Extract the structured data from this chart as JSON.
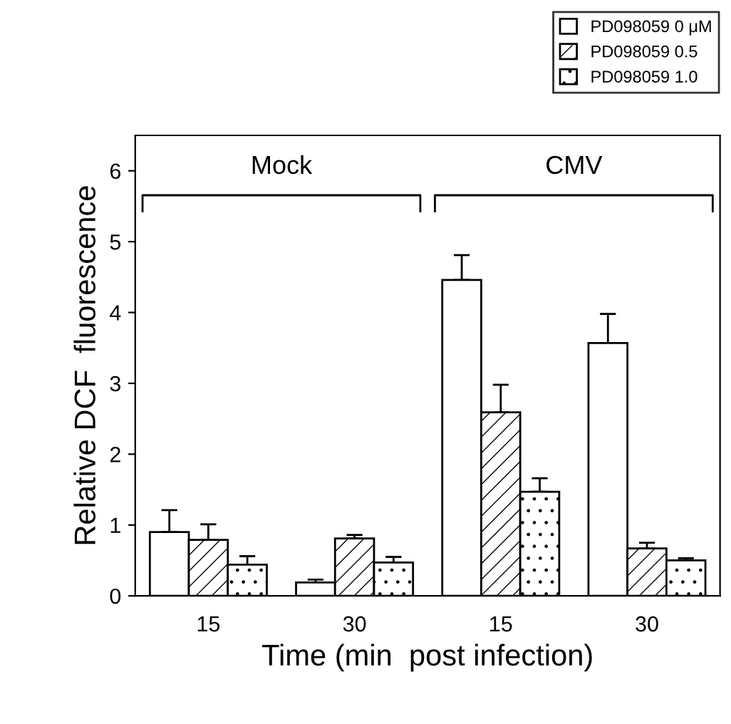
{
  "chart_data": {
    "type": "bar",
    "xlabel": "Time (min  post infection)",
    "ylabel": "Relative DCF  fluorescence",
    "categories": [
      "15",
      "30",
      "15",
      "30"
    ],
    "series": [
      {
        "name": "PD098059 0 μM",
        "color": "#ffffff",
        "values": [
          0.9,
          0.19,
          4.46,
          3.57
        ],
        "errors": [
          [
            0.9,
            1.21
          ],
          [
            0.19,
            0.23
          ],
          [
            4.46,
            4.81
          ],
          [
            3.57,
            3.98
          ]
        ]
      },
      {
        "name": "PD098059 0.5",
        "color": "#000000",
        "values": [
          0.79,
          0.81,
          2.59,
          0.67
        ],
        "errors": [
          [
            0.79,
            1.01
          ],
          [
            0.81,
            0.86
          ],
          [
            2.59,
            2.98
          ],
          [
            0.67,
            0.75
          ]
        ]
      },
      {
        "name": "PD098059 1.0",
        "color": "#000000",
        "values": [
          0.44,
          0.47,
          1.47,
          0.5
        ],
        "errors": [
          [
            0.44,
            0.56
          ],
          [
            0.47,
            0.55
          ],
          [
            1.47,
            1.66
          ],
          [
            0.5,
            0.53
          ]
        ]
      }
    ],
    "annotations": [
      "Mock",
      "CMV"
    ],
    "ylim": [
      0,
      6.5
    ],
    "yticks": [
      0,
      1,
      2,
      3,
      4,
      5,
      6
    ],
    "grid": false,
    "legend": "top right"
  }
}
